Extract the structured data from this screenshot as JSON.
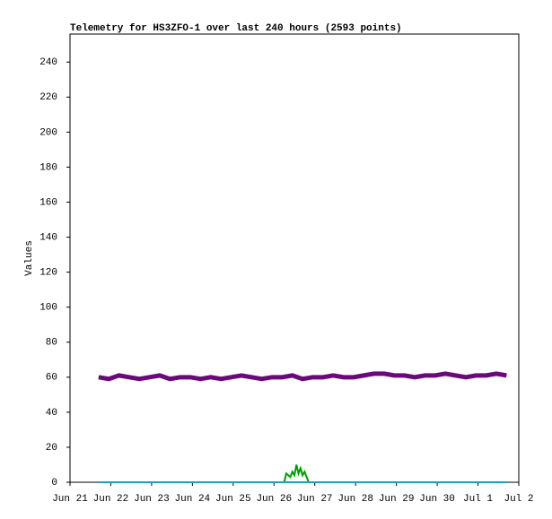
{
  "chart_data": {
    "type": "line",
    "title": "Telemetry for HS3ZFO-1 over last 240 hours (2593 points)",
    "y_label": "Values",
    "xlim": [
      0,
      11
    ],
    "xticks": [
      {
        "value": 0,
        "label": "Jun 21"
      },
      {
        "value": 1,
        "label": "Jun 22"
      },
      {
        "value": 2,
        "label": "Jun 23"
      },
      {
        "value": 3,
        "label": "Jun 24"
      },
      {
        "value": 4,
        "label": "Jun 25"
      },
      {
        "value": 5,
        "label": "Jun 26"
      },
      {
        "value": 6,
        "label": "Jun 27"
      },
      {
        "value": 7,
        "label": "Jun 28"
      },
      {
        "value": 8,
        "label": "Jun 29"
      },
      {
        "value": 9,
        "label": "Jun 30"
      },
      {
        "value": 10,
        "label": "Jul 1"
      },
      {
        "value": 11,
        "label": "Jul 2"
      }
    ],
    "ylim": [
      0,
      256
    ],
    "yticks": [
      0,
      20,
      40,
      60,
      80,
      100,
      120,
      140,
      160,
      180,
      200,
      220,
      240
    ],
    "grid": false,
    "series": [
      {
        "color": "#6a0a7a",
        "x": [
          0.7,
          0.95,
          1.2,
          1.45,
          1.7,
          1.95,
          2.2,
          2.45,
          2.7,
          2.95,
          3.2,
          3.45,
          3.7,
          3.95,
          4.2,
          4.45,
          4.7,
          4.95,
          5.2,
          5.45,
          5.7,
          5.95,
          6.2,
          6.45,
          6.7,
          6.95,
          7.2,
          7.45,
          7.7,
          7.95,
          8.2,
          8.45,
          8.7,
          8.95,
          9.2,
          9.45,
          9.7,
          9.95,
          10.2,
          10.45,
          10.7
        ],
        "values": [
          60,
          59,
          61,
          60,
          59,
          60,
          61,
          59,
          60,
          60,
          59,
          60,
          59,
          60,
          61,
          60,
          59,
          60,
          60,
          61,
          59,
          60,
          60,
          61,
          60,
          60,
          61,
          62,
          62,
          61,
          61,
          60,
          61,
          61,
          62,
          61,
          60,
          61,
          61,
          62,
          61
        ]
      },
      {
        "color": "#00a000",
        "x": [
          0.7,
          5.25,
          5.3,
          5.4,
          5.45,
          5.5,
          5.55,
          5.6,
          5.65,
          5.7,
          5.75,
          5.8,
          5.85,
          10.7
        ],
        "values": [
          0,
          0,
          5,
          3,
          6,
          4,
          10,
          5,
          8,
          4,
          6,
          3,
          0,
          0
        ]
      },
      {
        "color": "#1aa0c0",
        "x": [
          0.7,
          10.7
        ],
        "values": [
          0,
          0
        ]
      }
    ]
  }
}
